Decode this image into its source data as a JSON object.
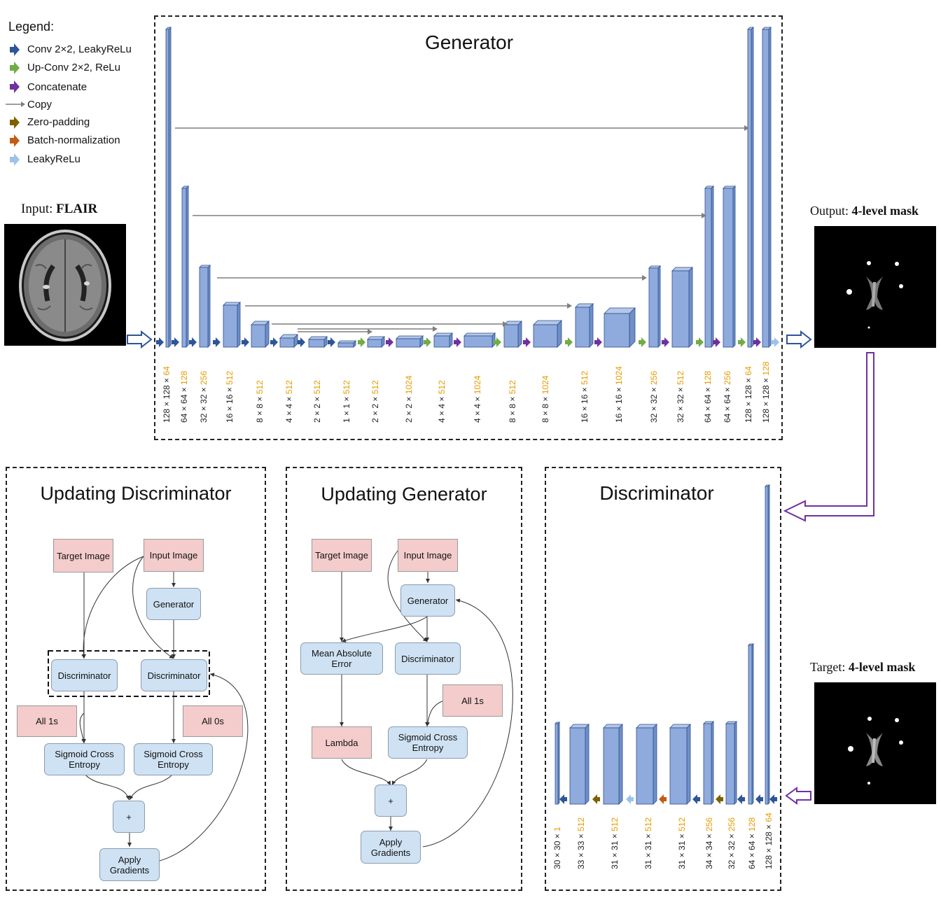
{
  "legend": {
    "title": "Legend:",
    "items": [
      {
        "label": "Conv 2×2, LeakyReLu",
        "color": "#2e5597",
        "icon": "arrow-icon"
      },
      {
        "label": "Up-Conv 2×2, ReLu",
        "color": "#70ad47",
        "icon": "arrow-icon"
      },
      {
        "label": "Concatenate",
        "color": "#7030a0",
        "icon": "arrow-icon"
      },
      {
        "label": "Copy",
        "color": "#7f7f7f",
        "icon": "line-arrow-icon"
      },
      {
        "label": "Zero-padding",
        "color": "#7f6000",
        "icon": "arrow-icon"
      },
      {
        "label": "Batch-normalization",
        "color": "#c55a11",
        "icon": "arrow-icon"
      },
      {
        "label": "LeakyReLu",
        "color": "#9dc3e6",
        "icon": "arrow-icon"
      }
    ]
  },
  "input": {
    "prefix": "Input: ",
    "name": "FLAIR"
  },
  "output": {
    "prefix": "Output: ",
    "name": "4-level mask"
  },
  "target": {
    "prefix": "Target: ",
    "name": "4-level mask"
  },
  "generator": {
    "title": "Generator",
    "labels": [
      {
        "dims": "128 × 128 ×",
        "ch": " 64"
      },
      {
        "dims": "64 × 64 ×",
        "ch": " 128"
      },
      {
        "dims": "32 × 32 ×",
        "ch": " 256"
      },
      {
        "dims": "16 × 16 ×",
        "ch": " 512"
      },
      {
        "dims": "8 × 8 ×",
        "ch": " 512"
      },
      {
        "dims": "4 × 4 ×",
        "ch": " 512"
      },
      {
        "dims": "2 × 2 ×",
        "ch": " 512"
      },
      {
        "dims": "1 × 1 ×",
        "ch": " 512"
      },
      {
        "dims": "2 × 2 ×",
        "ch": " 512"
      },
      {
        "dims": "2 × 2 ×",
        "ch": " 1024"
      },
      {
        "dims": "4 × 4 ×",
        "ch": " 512"
      },
      {
        "dims": "4 × 4 ×",
        "ch": " 1024"
      },
      {
        "dims": "8 × 8 ×",
        "ch": " 512"
      },
      {
        "dims": "8 × 8 ×",
        "ch": " 1024"
      },
      {
        "dims": "16 × 16 ×",
        "ch": " 512"
      },
      {
        "dims": "16 × 16 ×",
        "ch": " 1024"
      },
      {
        "dims": "32 × 32 ×",
        "ch": " 256"
      },
      {
        "dims": "32 × 32 ×",
        "ch": " 512"
      },
      {
        "dims": "64 × 64 ×",
        "ch": " 128"
      },
      {
        "dims": "64 × 64 ×",
        "ch": " 256"
      },
      {
        "dims": "128 × 128 ×",
        "ch": " 64"
      },
      {
        "dims": "128 × 128 ×",
        "ch": " 128"
      }
    ]
  },
  "discriminator": {
    "title": "Discriminator",
    "labels": [
      {
        "dims": "30 × 30 ×",
        "ch": " 1"
      },
      {
        "dims": "33 × 33 ×",
        "ch": " 512"
      },
      {
        "dims": "31 × 31 ×",
        "ch": " 512"
      },
      {
        "dims": "31 × 31 ×",
        "ch": " 512"
      },
      {
        "dims": "31 × 31 ×",
        "ch": " 512"
      },
      {
        "dims": "34 × 34 ×",
        "ch": " 256"
      },
      {
        "dims": "32 × 32 ×",
        "ch": " 256"
      },
      {
        "dims": "64 × 64 ×",
        "ch": " 128"
      },
      {
        "dims": "128 × 128 ×",
        "ch": " 64"
      }
    ]
  },
  "updating_discriminator": {
    "title": "Updating Discriminator",
    "target_image": "Target Image",
    "input_image": "Input Image",
    "generator": "Generator",
    "disc_left": "Discriminator",
    "disc_right": "Discriminator",
    "all_1s": "All 1s",
    "all_0s": "All 0s",
    "sce_left": "Sigmoid Cross Entropy",
    "sce_right": "Sigmoid Cross Entropy",
    "plus": "+",
    "apply": "Apply Gradients"
  },
  "updating_generator": {
    "title": "Updating Generator",
    "target_image": "Target Image",
    "input_image": "Input Image",
    "generator": "Generator",
    "mae": "Mean Absolute Error",
    "discriminator": "Discriminator",
    "all_1s": "All 1s",
    "lambda": "Lambda",
    "sce": "Sigmoid Cross Entropy",
    "plus": "+",
    "apply": "Apply Gradients"
  },
  "colors": {
    "block_fill": "#8faadc",
    "block_top": "#b4c7e7",
    "block_side": "#6f8fc7",
    "block_stroke": "#2f4f8f",
    "channel_label": "#e69b00",
    "dim_label": "#222222"
  }
}
